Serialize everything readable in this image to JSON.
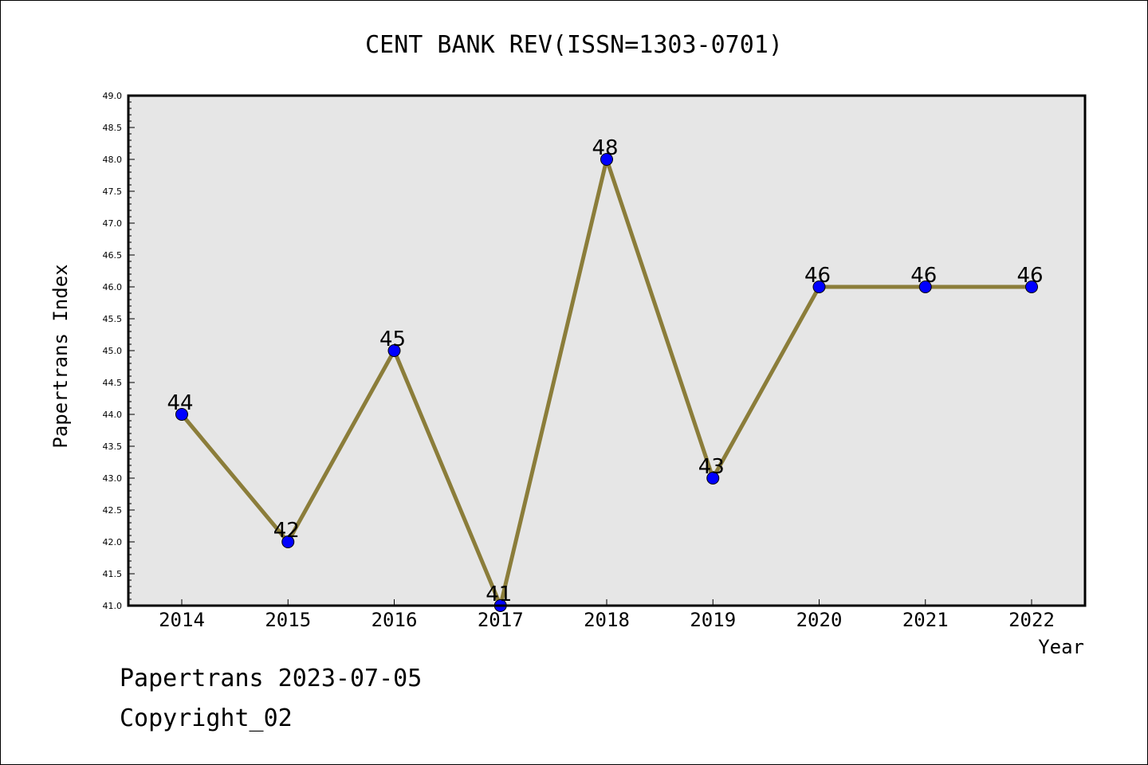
{
  "chart_data": {
    "type": "line",
    "title": "CENT BANK REV(ISSN=1303-0701)",
    "xlabel": "Year",
    "ylabel": "Papertrans Index",
    "categories": [
      "2014",
      "2015",
      "2016",
      "2017",
      "2018",
      "2019",
      "2020",
      "2021",
      "2022"
    ],
    "series": [
      {
        "values": [
          44,
          42,
          45,
          41,
          48,
          43,
          46,
          46,
          46
        ]
      }
    ],
    "data_labels": [
      "44",
      "42",
      "45",
      "41",
      "48",
      "43",
      "46",
      "46",
      "46"
    ],
    "ylim": [
      41.0,
      49.0
    ],
    "ytick_step": 0.5,
    "ytick_labels": [
      "41.0",
      "41.5",
      "42.0",
      "42.5",
      "43.0",
      "43.5",
      "44.0",
      "44.5",
      "45.0",
      "45.5",
      "46.0",
      "46.5",
      "47.0",
      "47.5",
      "48.0",
      "48.5",
      "49.0"
    ],
    "grid": false,
    "colors": {
      "line": "#8B7D3A",
      "marker": "#0000FF",
      "plot_background": "#E6E6E6"
    }
  },
  "footer": {
    "line1": "Papertrans 2023-07-05",
    "line2": "Copyright_02"
  }
}
